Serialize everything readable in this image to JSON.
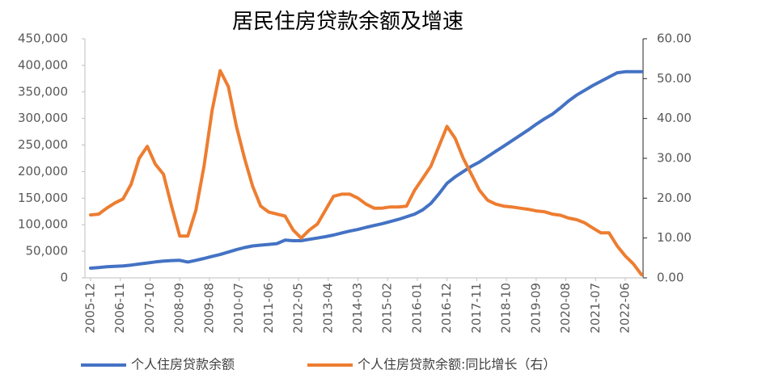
{
  "chart_data": {
    "type": "line",
    "title": "居民住房贷款余额及增速",
    "x": [
      "2005-12",
      "2006-03",
      "2006-06",
      "2006-09",
      "2006-12",
      "2007-03",
      "2007-06",
      "2007-09",
      "2007-12",
      "2008-03",
      "2008-06",
      "2008-09",
      "2008-12",
      "2009-03",
      "2009-06",
      "2009-09",
      "2009-12",
      "2010-03",
      "2010-06",
      "2010-09",
      "2010-12",
      "2011-03",
      "2011-06",
      "2011-09",
      "2011-12",
      "2012-03",
      "2012-06",
      "2012-09",
      "2012-12",
      "2013-03",
      "2013-06",
      "2013-09",
      "2013-12",
      "2014-03",
      "2014-06",
      "2014-09",
      "2014-12",
      "2015-03",
      "2015-06",
      "2015-09",
      "2015-12",
      "2016-03",
      "2016-06",
      "2016-09",
      "2016-12",
      "2017-03",
      "2017-06",
      "2017-09",
      "2017-12",
      "2018-03",
      "2018-06",
      "2018-09",
      "2018-12",
      "2019-03",
      "2019-06",
      "2019-09",
      "2019-12",
      "2020-03",
      "2020-06",
      "2020-09",
      "2020-12",
      "2021-03",
      "2021-06",
      "2021-09",
      "2021-12",
      "2022-03",
      "2022-06",
      "2022-09",
      "2022-12"
    ],
    "xlim": [
      "2005-12",
      "2022-12"
    ],
    "xticks": [
      "2005-12",
      "2006-11",
      "2007-10",
      "2008-09",
      "2009-08",
      "2010-07",
      "2011-06",
      "2012-05",
      "2013-04",
      "2014-03",
      "2015-02",
      "2016-01",
      "2016-12",
      "2017-11",
      "2018-10",
      "2019-09",
      "2020-08",
      "2021-07",
      "2022-06"
    ],
    "ylim": [
      0,
      450000
    ],
    "yticks": [
      0,
      {
        "value": 50000,
        "label": "50,000"
      },
      {
        "value": 100000,
        "label": "100,000"
      },
      {
        "value": 150000,
        "label": "150,000"
      },
      {
        "value": 200000,
        "label": "200,000"
      },
      {
        "value": 250000,
        "label": "250,000"
      },
      {
        "value": 300000,
        "label": "300,000"
      },
      {
        "value": 350000,
        "label": "350,000"
      },
      {
        "value": 400000,
        "label": "400,000"
      },
      {
        "value": 450000,
        "label": "450,000"
      }
    ],
    "y2lim": [
      0,
      60
    ],
    "y2ticks": [
      {
        "value": 0,
        "label": "0.00"
      },
      {
        "value": 10,
        "label": "10.00"
      },
      {
        "value": 20,
        "label": "20.00"
      },
      {
        "value": 30,
        "label": "30.00"
      },
      {
        "value": 40,
        "label": "40.00"
      },
      {
        "value": 50,
        "label": "50.00"
      },
      {
        "value": 60,
        "label": "60.00"
      }
    ],
    "series": [
      {
        "name": "个人住房贷款余额",
        "color": "#4472c4",
        "axis": "y",
        "values": [
          18200,
          19500,
          20800,
          21600,
          22500,
          24000,
          26000,
          28000,
          30000,
          31500,
          32500,
          33000,
          29800,
          33000,
          36500,
          40500,
          44000,
          48500,
          53000,
          57000,
          60000,
          61500,
          63000,
          64500,
          71000,
          70000,
          70000,
          72500,
          75000,
          77500,
          80500,
          84500,
          88000,
          91000,
          95000,
          98500,
          102000,
          106000,
          110000,
          115000,
          120000,
          128000,
          140000,
          158000,
          178000,
          190000,
          200000,
          210000,
          218000,
          228000,
          238000,
          248000,
          258000,
          268000,
          278000,
          289000,
          299000,
          308000,
          320000,
          333000,
          344000,
          353000,
          362000,
          370000,
          378000,
          386000,
          388000,
          388000,
          388000
        ]
      },
      {
        "name": "个人住房贷款余额:同比增长（右）",
        "color": "#ed7d31",
        "axis": "y2",
        "values": [
          15.8,
          16.0,
          17.5,
          18.8,
          19.8,
          23.5,
          30.0,
          33.0,
          28.5,
          26.0,
          18.0,
          10.5,
          10.5,
          17.0,
          28.0,
          42.0,
          52.0,
          48.0,
          38.0,
          30.0,
          23.0,
          18.0,
          16.5,
          16.0,
          15.5,
          12.0,
          10.0,
          12.0,
          13.5,
          17.0,
          20.5,
          21.0,
          21.0,
          20.0,
          18.5,
          17.5,
          17.5,
          17.8,
          17.8,
          18.0,
          22.0,
          25.0,
          28.0,
          33.0,
          38.0,
          35.0,
          30.0,
          26.0,
          22.0,
          19.5,
          18.5,
          18.0,
          17.8,
          17.5,
          17.2,
          16.8,
          16.6,
          16.0,
          15.7,
          15.0,
          14.6,
          13.8,
          12.5,
          11.3,
          11.3,
          8.0,
          5.5,
          3.5,
          0.8
        ]
      }
    ]
  }
}
